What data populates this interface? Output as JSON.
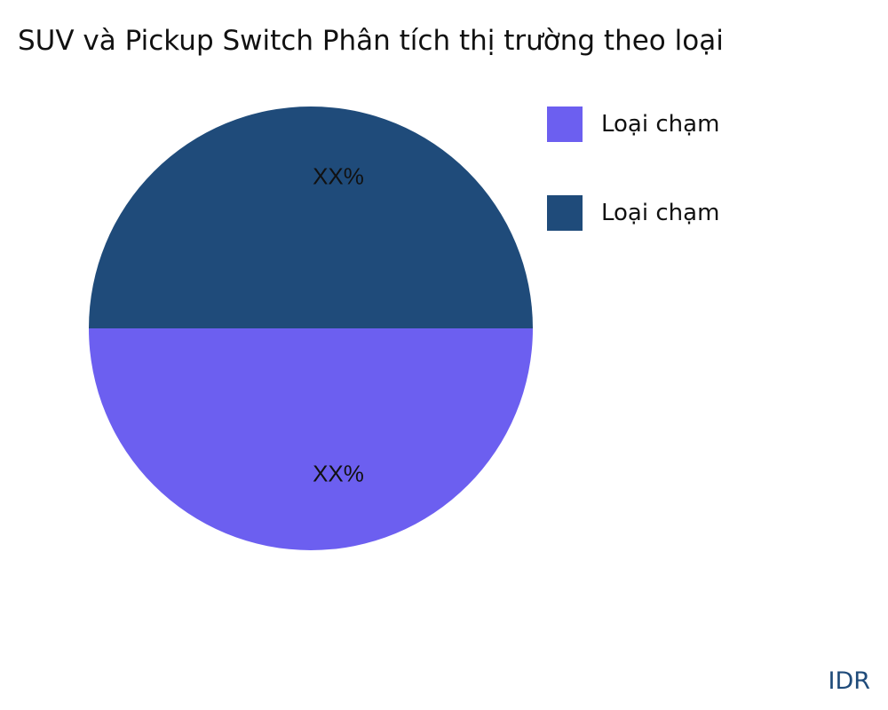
{
  "title": "SUV và Pickup Switch Phân tích thị trường theo loại",
  "brand": "IDR",
  "chart_data": {
    "type": "pie",
    "title": "SUV và Pickup Switch Phân tích thị trường theo loại",
    "legend_position": "top-right",
    "slices": [
      {
        "name": "Loại chạm",
        "value": 50,
        "label": "XX%",
        "color": "#6c5ff0"
      },
      {
        "name": "Loại chạm",
        "value": 50,
        "label": "XX%",
        "color": "#1f4b7a"
      }
    ]
  }
}
